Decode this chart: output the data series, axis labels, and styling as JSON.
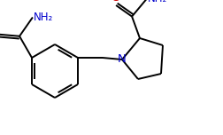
{
  "background_color": "#ffffff",
  "line_color": "#000000",
  "atom_N_color": "#0000cc",
  "atom_O_color": "#cc0000",
  "atom_S_color": "#000000",
  "line_width": 1.4,
  "font_size": 8.5,
  "figsize": [
    2.52,
    1.52
  ],
  "dpi": 100,
  "xlim": [
    0,
    252
  ],
  "ylim": [
    0,
    152
  ]
}
